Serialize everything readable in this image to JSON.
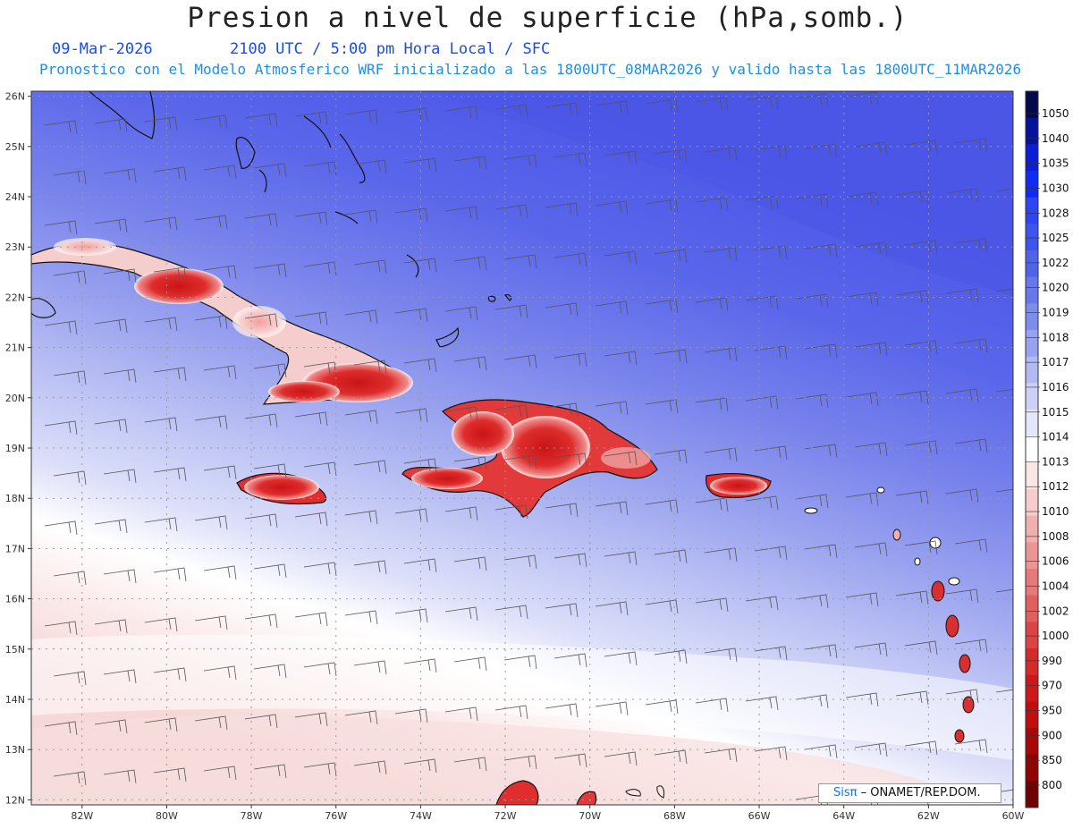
{
  "header": {
    "title": "Presion a nivel de superficie (hPa,somb.)",
    "date": "09-Mar-2026",
    "time_line": "2100 UTC / 5:00 pm Hora Local / SFC",
    "model_line": "Pronostico con el Modelo Atmosferico WRF inicializado a las 1800UTC_08MAR2026 y valido hasta las  1800UTC_11MAR2026"
  },
  "map": {
    "lat_labels": [
      "26N",
      "25N",
      "24N",
      "23N",
      "22N",
      "21N",
      "20N",
      "19N",
      "18N",
      "17N",
      "16N",
      "15N",
      "14N",
      "13N",
      "12N"
    ],
    "lon_labels": [
      "82W",
      "80W",
      "78W",
      "76W",
      "74W",
      "72W",
      "70W",
      "68W",
      "66W",
      "64W",
      "62W",
      "60W"
    ],
    "lon_range": [
      -83.2,
      -60.0
    ],
    "lat_range": [
      11.9,
      26.1
    ],
    "colors": {
      "high_pressure": "#4a55e6",
      "neutral": "#ffffff",
      "low_pressure": "#d92222"
    }
  },
  "colorbar": {
    "labels": [
      "1050",
      "1040",
      "1035",
      "1030",
      "1028",
      "1025",
      "1022",
      "1020",
      "1019",
      "1018",
      "1017",
      "1016",
      "1015",
      "1014",
      "1013",
      "1012",
      "1010",
      "1008",
      "1006",
      "1004",
      "1002",
      "1000",
      "990",
      "970",
      "950",
      "900",
      "850",
      "800"
    ],
    "colors": [
      "#030a4a",
      "#05139c",
      "#0a1fd6",
      "#0f2cf5",
      "#2d45f2",
      "#3d54ee",
      "#5064ea",
      "#6678ea",
      "#7d8deb",
      "#97a3ee",
      "#b1baf2",
      "#cbd1f6",
      "#e4e7fa",
      "#ffffff",
      "#fbe6e6",
      "#f7cccc",
      "#f1b0b0",
      "#ec9595",
      "#e67a7a",
      "#e05f5f",
      "#da4444",
      "#d42a2a",
      "#cc1818",
      "#c00e0e",
      "#a80808",
      "#900404",
      "#700202"
    ]
  },
  "credit": {
    "brand": "Sisπ",
    "text": " – ONAMET/REP.DOM."
  }
}
